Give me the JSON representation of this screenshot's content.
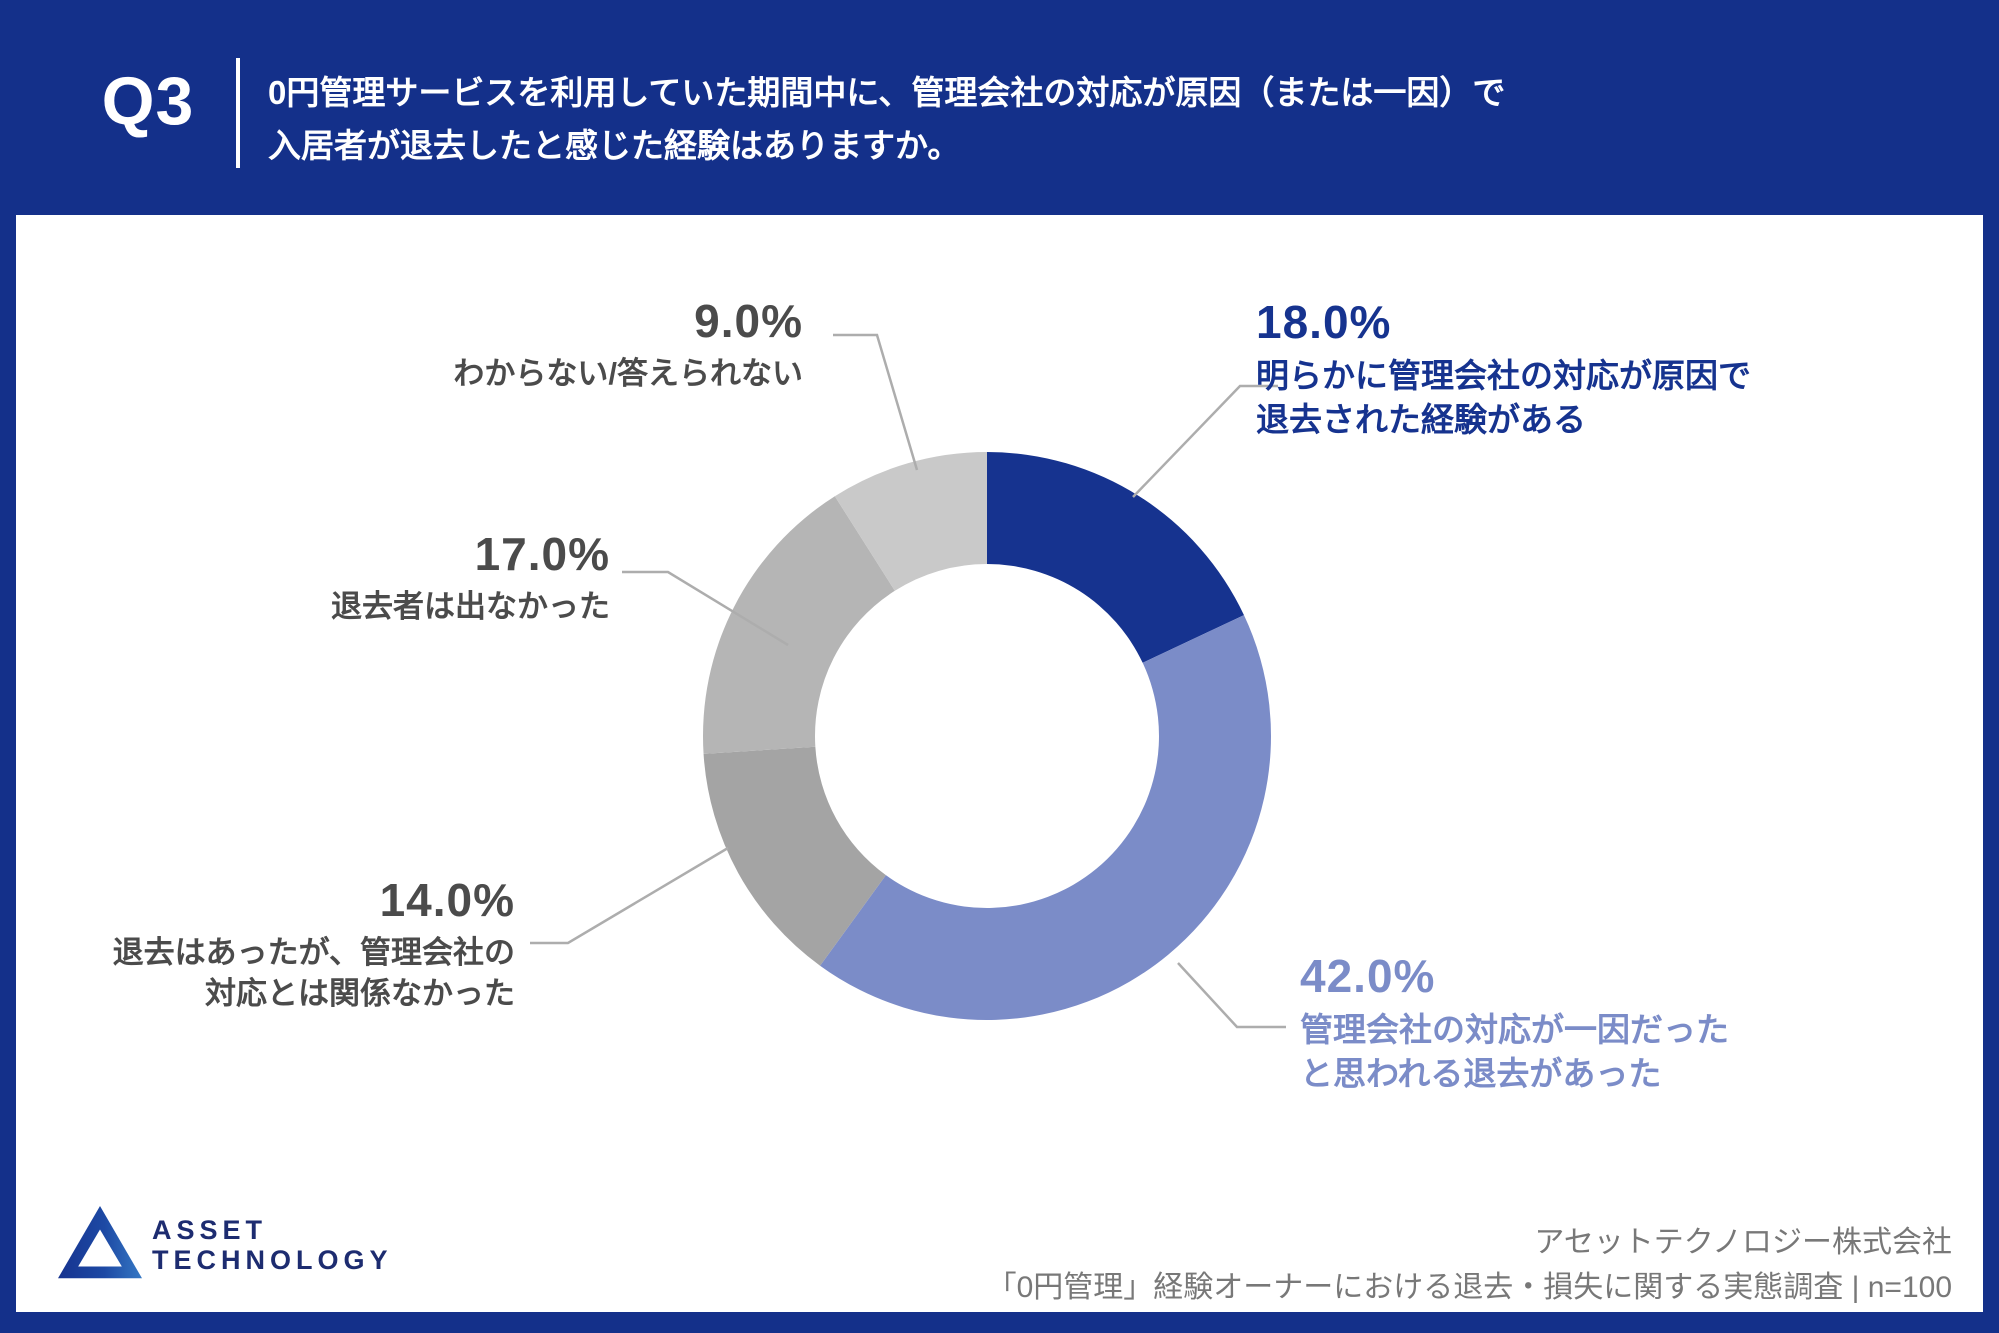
{
  "header": {
    "q_label": "Q3",
    "question_line1": "0円管理サービスを利用していた期間中に、管理会社の対応が原因（または一因）で",
    "question_line2": "入居者が退去したと感じた経験はありますか。"
  },
  "chart_data": {
    "type": "pie",
    "subtype": "donut",
    "unit": "%",
    "start_angle_deg_from_top": 0,
    "direction": "clockwise",
    "segments": [
      {
        "label": "明らかに管理会社の対応が原因で退去された経験がある",
        "value": 18.0,
        "color": "#16338F"
      },
      {
        "label": "管理会社の対応が一因だったと思われる退去があった",
        "value": 42.0,
        "color": "#7B8CC8"
      },
      {
        "label": "退去はあったが、管理会社の対応とは関係なかった",
        "value": 14.0,
        "color": "#A4A4A4"
      },
      {
        "label": "退去者は出なかった",
        "value": 17.0,
        "color": "#B5B5B5"
      },
      {
        "label": "わからない/答えられない",
        "value": 9.0,
        "color": "#C9C9C9"
      }
    ]
  },
  "callouts": [
    {
      "value": "18.0%",
      "lines": [
        "明らかに管理会社の対応が原因で",
        "退去された経験がある"
      ],
      "color": "#16338F"
    },
    {
      "value": "42.0%",
      "lines": [
        "管理会社の対応が一因だった",
        "と思われる退去があった"
      ],
      "color": "#7B8CC8"
    },
    {
      "value": "14.0%",
      "lines": [
        "退去はあったが、管理会社の",
        "対応とは関係なかった"
      ],
      "color": "#4B4B4B"
    },
    {
      "value": "17.0%",
      "lines": [
        "退去者は出なかった"
      ],
      "color": "#4B4B4B"
    },
    {
      "value": "9.0%",
      "lines": [
        "わからない/答えられない"
      ],
      "color": "#4B4B4B"
    }
  ],
  "footer": {
    "logo_line1": "ASSET",
    "logo_line2": "TECHNOLOGY",
    "source_line1": "アセットテクノロジー株式会社",
    "source_line2": "「0円管理」経験オーナーにおける退去・損失に関する実態調査 | n=100"
  },
  "colors": {
    "frame_blue": "#14308A",
    "leader_line": "#ADADAD",
    "logo_navy": "#1D2C70"
  }
}
